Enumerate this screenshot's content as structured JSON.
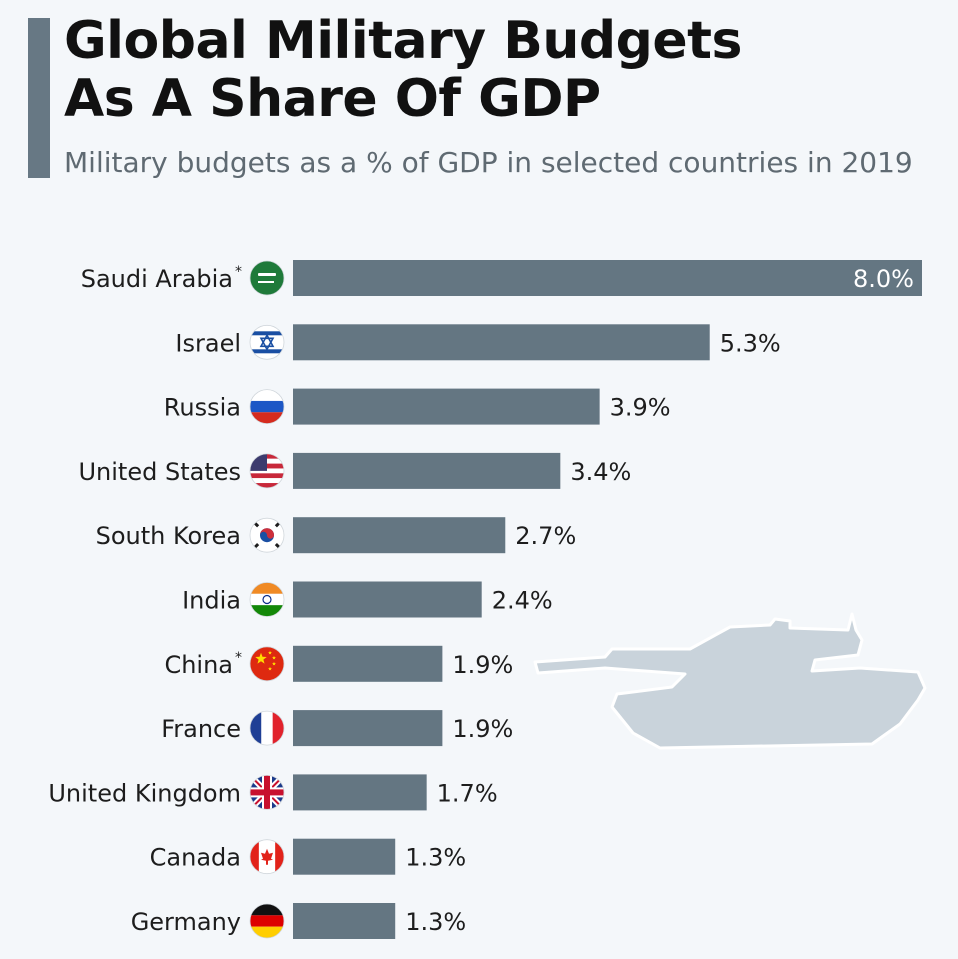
{
  "chart_data": {
    "type": "bar",
    "orientation": "horizontal",
    "title": "Global Military Budgets As A Share Of GDP",
    "subtitle": "Military budgets as a % of GDP in selected countries in 2019",
    "categories": [
      "Saudi Arabia",
      "Israel",
      "Russia",
      "United States",
      "South Korea",
      "India",
      "China",
      "France",
      "United Kingdom",
      "Canada",
      "Germany"
    ],
    "footnote_marks": [
      "*",
      "",
      "",
      "",
      "",
      "",
      "*",
      "",
      "",
      "",
      ""
    ],
    "values": [
      8.0,
      5.3,
      3.9,
      3.4,
      2.7,
      2.4,
      1.9,
      1.9,
      1.7,
      1.3,
      1.3
    ],
    "value_labels": [
      "8.0%",
      "5.3%",
      "3.9%",
      "3.4%",
      "2.7%",
      "2.4%",
      "1.9%",
      "1.9%",
      "1.7%",
      "1.3%",
      "1.3%"
    ],
    "flag_icons": [
      "flag-saudi-arabia-icon",
      "flag-israel-icon",
      "flag-russia-icon",
      "flag-united-states-icon",
      "flag-south-korea-icon",
      "flag-india-icon",
      "flag-china-icon",
      "flag-france-icon",
      "flag-united-kingdom-icon",
      "flag-canada-icon",
      "flag-germany-icon"
    ],
    "xlim": [
      0,
      8.0
    ],
    "bar_color": "#647682",
    "grid": false,
    "legend": "none",
    "decoration": "tank-silhouette-icon"
  }
}
